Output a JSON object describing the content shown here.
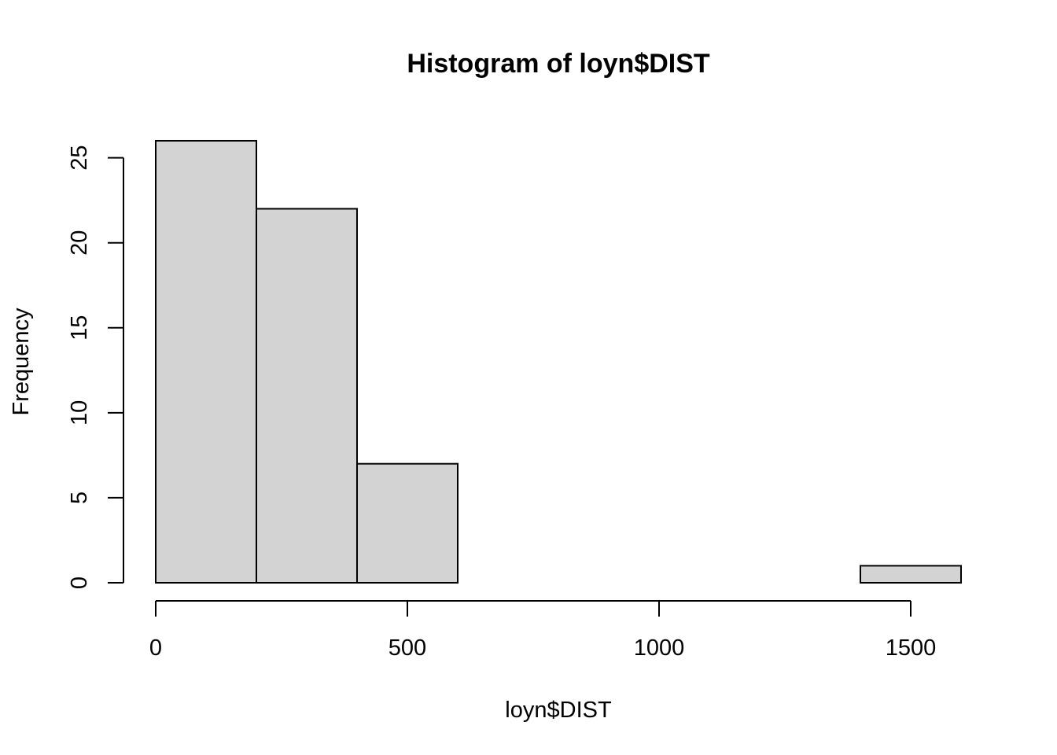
{
  "chart_data": {
    "type": "bar",
    "title": "Histogram of loyn$DIST",
    "xlabel": "loyn$DIST",
    "ylabel": "Frequency",
    "bins": [
      {
        "from": 0,
        "to": 200,
        "count": 26
      },
      {
        "from": 200,
        "to": 400,
        "count": 22
      },
      {
        "from": 400,
        "to": 600,
        "count": 7
      },
      {
        "from": 600,
        "to": 800,
        "count": 0
      },
      {
        "from": 800,
        "to": 1000,
        "count": 0
      },
      {
        "from": 1000,
        "to": 1200,
        "count": 0
      },
      {
        "from": 1200,
        "to": 1400,
        "count": 0
      },
      {
        "from": 1400,
        "to": 1600,
        "count": 1
      }
    ],
    "xlim": [
      0,
      1600
    ],
    "ylim": [
      0,
      26
    ],
    "x_ticks": [
      0,
      500,
      1000,
      1500
    ],
    "y_ticks": [
      0,
      5,
      10,
      15,
      20,
      25
    ],
    "bar_color": "#d3d3d3",
    "grid": false
  }
}
